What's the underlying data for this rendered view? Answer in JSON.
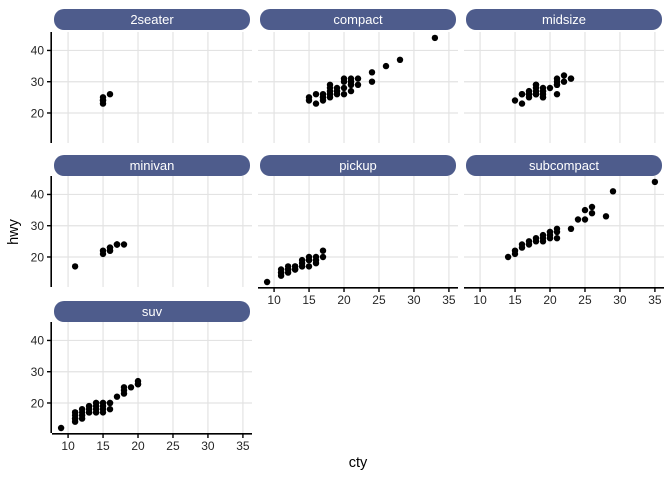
{
  "style": {
    "background": "#ffffff",
    "strip_fill": "#4e5c8c",
    "strip_text_color": "#ffffff",
    "grid_color": "#e3e3e3",
    "axis_line_color": "#000000",
    "tick_label_color": "#262626",
    "point_color": "#000000"
  },
  "chart_data": {
    "type": "scatter",
    "title": "",
    "xlabel": "cty",
    "ylabel": "hwy",
    "grid": "major-on",
    "legend": "none",
    "facet_columns": 3,
    "x_ticks": [
      10,
      15,
      20,
      25,
      30,
      35
    ],
    "y_ticks": [
      20,
      30,
      40
    ],
    "xlim": [
      7.7,
      36.3
    ],
    "ylim": [
      10.4,
      45.9
    ],
    "facets": [
      {
        "label": "2seater",
        "points": [
          [
            15,
            23
          ],
          [
            15,
            24
          ],
          [
            15,
            24
          ],
          [
            15,
            25
          ],
          [
            16,
            26
          ]
        ]
      },
      {
        "label": "compact",
        "points": [
          [
            15,
            25
          ],
          [
            15,
            24
          ],
          [
            16,
            26
          ],
          [
            16,
            23
          ],
          [
            17,
            25
          ],
          [
            17,
            25
          ],
          [
            17,
            24
          ],
          [
            17,
            26
          ],
          [
            18,
            26
          ],
          [
            18,
            26
          ],
          [
            18,
            27
          ],
          [
            18,
            28
          ],
          [
            18,
            29
          ],
          [
            18,
            25
          ],
          [
            19,
            27
          ],
          [
            19,
            27
          ],
          [
            19,
            26
          ],
          [
            19,
            28
          ],
          [
            20,
            28
          ],
          [
            20,
            31
          ],
          [
            20,
            26
          ],
          [
            20,
            30
          ],
          [
            21,
            29
          ],
          [
            21,
            29
          ],
          [
            21,
            30
          ],
          [
            21,
            30
          ],
          [
            21,
            31
          ],
          [
            21,
            27
          ],
          [
            22,
            31
          ],
          [
            22,
            29
          ],
          [
            24,
            33
          ],
          [
            24,
            30
          ],
          [
            26,
            35
          ],
          [
            28,
            37
          ],
          [
            33,
            44
          ]
        ]
      },
      {
        "label": "midsize",
        "points": [
          [
            15,
            24
          ],
          [
            16,
            23
          ],
          [
            16,
            26
          ],
          [
            16,
            26
          ],
          [
            17,
            25
          ],
          [
            17,
            26
          ],
          [
            17,
            26
          ],
          [
            17,
            27
          ],
          [
            18,
            26
          ],
          [
            18,
            26
          ],
          [
            18,
            26
          ],
          [
            18,
            27
          ],
          [
            18,
            28
          ],
          [
            18,
            29
          ],
          [
            18,
            29
          ],
          [
            19,
            25
          ],
          [
            19,
            25
          ],
          [
            19,
            26
          ],
          [
            19,
            27
          ],
          [
            19,
            27
          ],
          [
            19,
            28
          ],
          [
            20,
            28
          ],
          [
            21,
            26
          ],
          [
            21,
            29
          ],
          [
            21,
            29
          ],
          [
            21,
            30
          ],
          [
            21,
            31
          ],
          [
            22,
            30
          ],
          [
            22,
            32
          ],
          [
            23,
            31
          ],
          [
            23,
            31
          ]
        ]
      },
      {
        "label": "minivan",
        "points": [
          [
            11,
            17
          ],
          [
            15,
            21
          ],
          [
            15,
            22
          ],
          [
            16,
            22
          ],
          [
            16,
            22
          ],
          [
            16,
            23
          ],
          [
            16,
            23
          ],
          [
            17,
            24
          ],
          [
            17,
            24
          ],
          [
            17,
            24
          ],
          [
            18,
            24
          ]
        ]
      },
      {
        "label": "pickup",
        "points": [
          [
            9,
            12
          ],
          [
            11,
            14
          ],
          [
            11,
            15
          ],
          [
            11,
            15
          ],
          [
            11,
            16
          ],
          [
            12,
            15
          ],
          [
            12,
            16
          ],
          [
            12,
            16
          ],
          [
            12,
            17
          ],
          [
            13,
            16
          ],
          [
            13,
            16
          ],
          [
            13,
            17
          ],
          [
            13,
            17
          ],
          [
            14,
            17
          ],
          [
            14,
            17
          ],
          [
            14,
            18
          ],
          [
            14,
            19
          ],
          [
            15,
            17
          ],
          [
            15,
            19
          ],
          [
            15,
            19
          ],
          [
            15,
            20
          ],
          [
            16,
            18
          ],
          [
            16,
            19
          ],
          [
            16,
            20
          ],
          [
            17,
            20
          ],
          [
            17,
            22
          ]
        ]
      },
      {
        "label": "subcompact",
        "points": [
          [
            14,
            20
          ],
          [
            15,
            21
          ],
          [
            15,
            22
          ],
          [
            16,
            23
          ],
          [
            16,
            24
          ],
          [
            17,
            24
          ],
          [
            17,
            25
          ],
          [
            18,
            25
          ],
          [
            18,
            26
          ],
          [
            19,
            25
          ],
          [
            19,
            26
          ],
          [
            19,
            27
          ],
          [
            20,
            26
          ],
          [
            20,
            27
          ],
          [
            20,
            28
          ],
          [
            20,
            28
          ],
          [
            21,
            26
          ],
          [
            21,
            28
          ],
          [
            21,
            29
          ],
          [
            23,
            29
          ],
          [
            24,
            32
          ],
          [
            25,
            32
          ],
          [
            25,
            35
          ],
          [
            26,
            36
          ],
          [
            26,
            34
          ],
          [
            28,
            33
          ],
          [
            29,
            41
          ],
          [
            35,
            44
          ]
        ]
      },
      {
        "label": "suv",
        "points": [
          [
            9,
            12
          ],
          [
            11,
            14
          ],
          [
            11,
            15
          ],
          [
            11,
            15
          ],
          [
            11,
            16
          ],
          [
            11,
            17
          ],
          [
            11,
            17
          ],
          [
            12,
            15
          ],
          [
            12,
            16
          ],
          [
            12,
            17
          ],
          [
            12,
            18
          ],
          [
            13,
            17
          ],
          [
            13,
            17
          ],
          [
            13,
            17
          ],
          [
            13,
            18
          ],
          [
            13,
            19
          ],
          [
            13,
            19
          ],
          [
            14,
            17
          ],
          [
            14,
            17
          ],
          [
            14,
            18
          ],
          [
            14,
            19
          ],
          [
            14,
            20
          ],
          [
            14,
            20
          ],
          [
            15,
            17
          ],
          [
            15,
            18
          ],
          [
            15,
            19
          ],
          [
            15,
            20
          ],
          [
            15,
            20
          ],
          [
            16,
            18
          ],
          [
            16,
            20
          ],
          [
            16,
            20
          ],
          [
            17,
            22
          ],
          [
            18,
            23
          ],
          [
            18,
            24
          ],
          [
            18,
            25
          ],
          [
            19,
            25
          ],
          [
            20,
            26
          ],
          [
            20,
            26
          ],
          [
            20,
            27
          ]
        ]
      }
    ]
  }
}
